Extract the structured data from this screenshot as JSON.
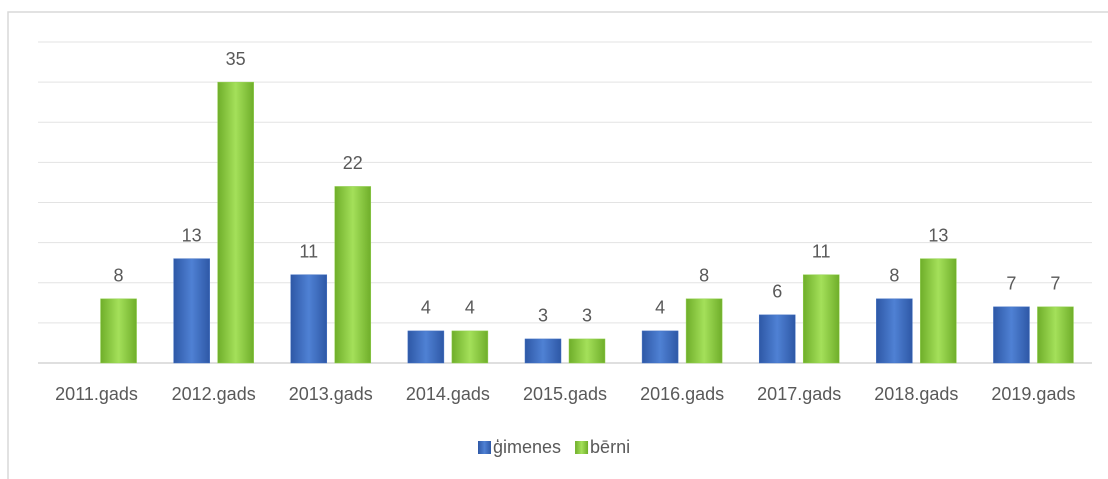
{
  "chart_data": {
    "type": "bar",
    "categories": [
      "2011.gads",
      "2012.gads",
      "2013.gads",
      "2014.gads",
      "2015.gads",
      "2016.gads",
      "2017.gads",
      "2018.gads",
      "2019.gads"
    ],
    "series": [
      {
        "name": "ģimenes",
        "color": "#4472c4",
        "values": [
          null,
          13,
          11,
          4,
          3,
          4,
          6,
          8,
          7
        ]
      },
      {
        "name": "bērni",
        "color": "#92d050",
        "values": [
          8,
          35,
          22,
          4,
          3,
          8,
          11,
          13,
          7
        ]
      }
    ],
    "ylim": [
      0,
      40
    ],
    "yticks": [
      0,
      5,
      10,
      15,
      20,
      25,
      30,
      35,
      40
    ],
    "grid": true,
    "legend": "bottom"
  }
}
